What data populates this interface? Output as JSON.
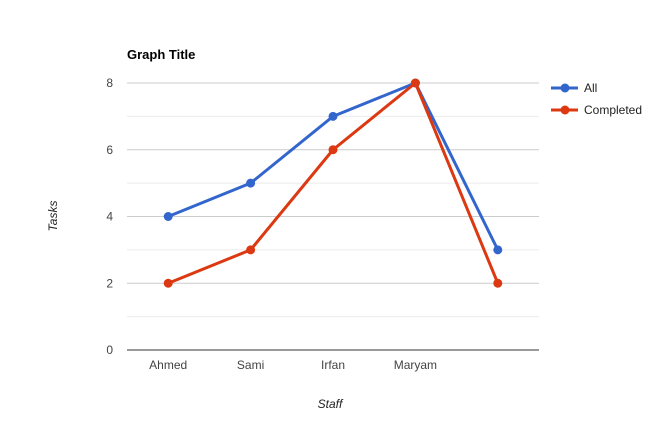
{
  "chart_data": {
    "type": "line",
    "title": "Graph Title",
    "xlabel": "Staff",
    "ylabel": "Tasks",
    "categories": [
      "Ahmed",
      "Sami",
      "Irfan",
      "Maryam",
      ""
    ],
    "series": [
      {
        "name": "All",
        "values": [
          4,
          5,
          7,
          8,
          3
        ],
        "color": "#3366cc"
      },
      {
        "name": "Completed",
        "values": [
          2,
          3,
          6,
          8,
          2
        ],
        "color": "#dc3912"
      }
    ],
    "ylim": [
      0,
      8
    ],
    "y_ticks": [
      "0",
      "2",
      "4",
      "6",
      "8"
    ],
    "grid": true,
    "legend_position": "right"
  }
}
